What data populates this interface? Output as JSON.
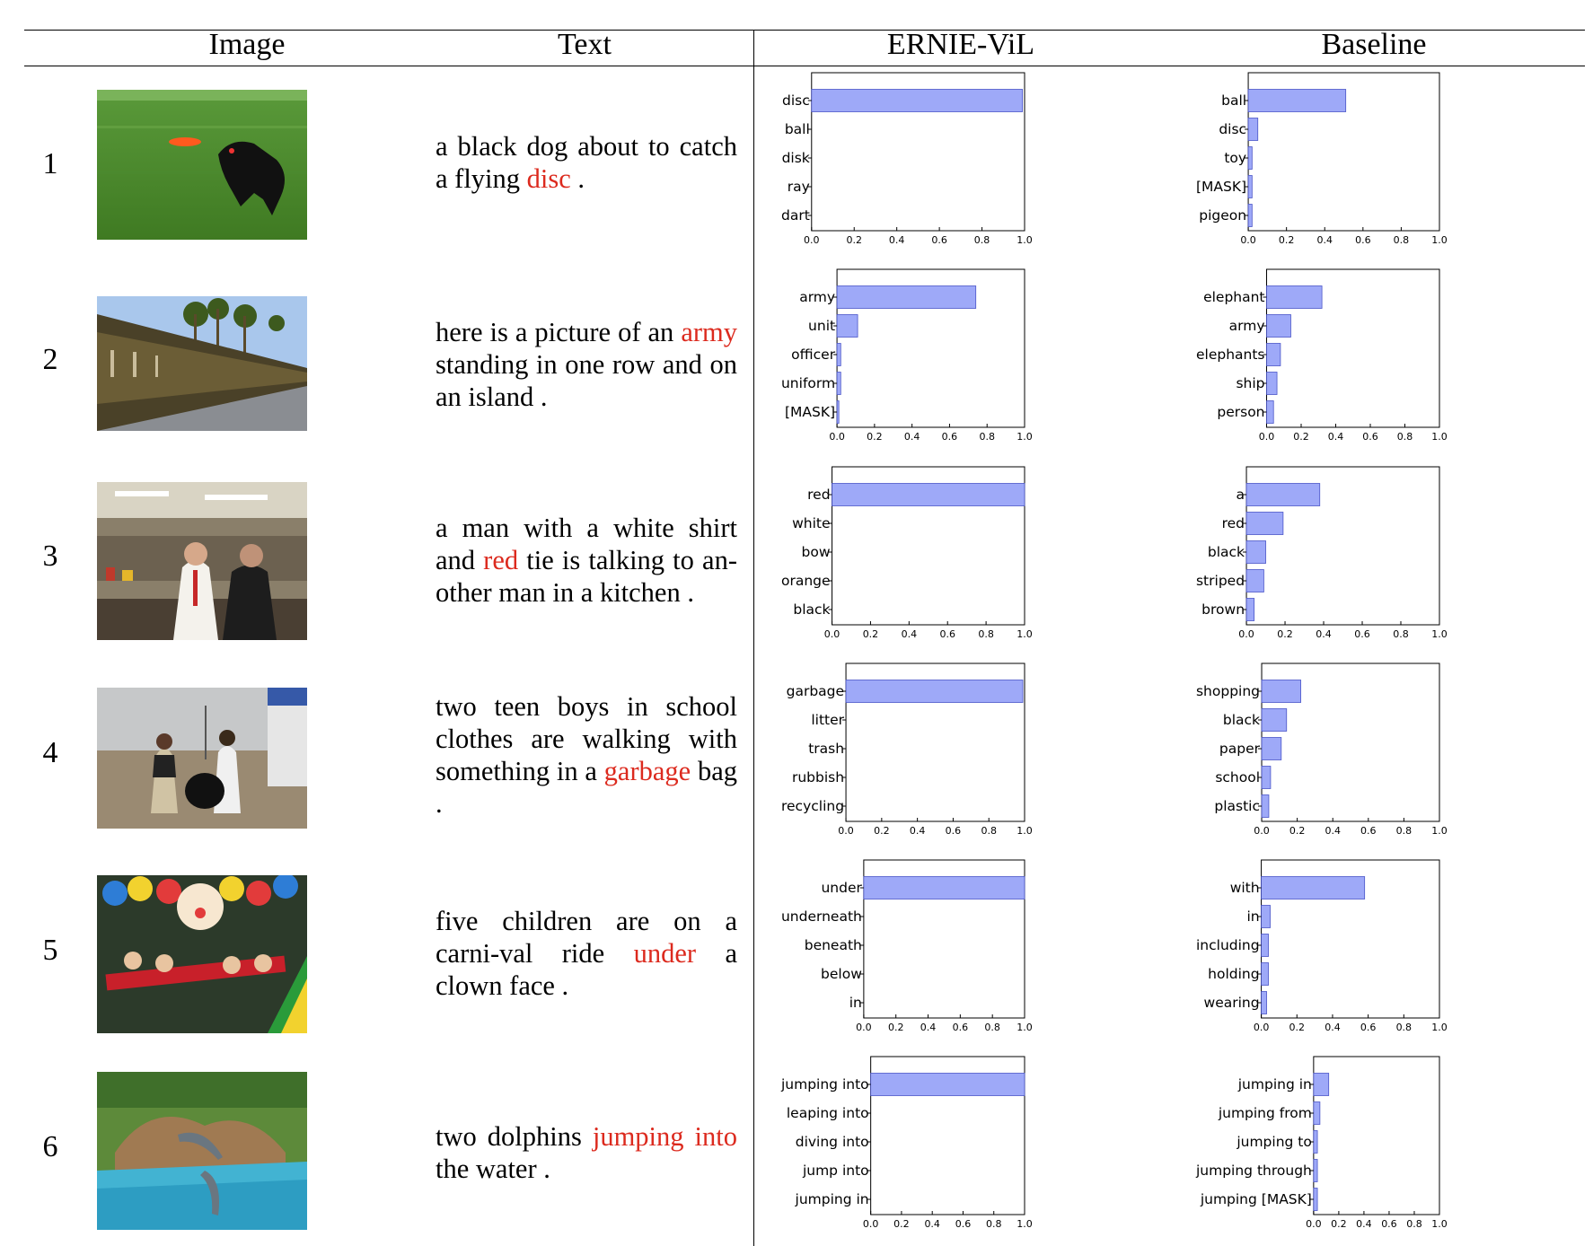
{
  "headers": {
    "image": "Image",
    "text": "Text",
    "ernie": "ERNIE-ViL",
    "baseline": "Baseline"
  },
  "colors": {
    "bar_fill": "#9ea9f8",
    "bar_stroke": "#4a55c8",
    "highlight": "#dc2a1e"
  },
  "rows": [
    {
      "num": "1",
      "image_icon": "dog-catching-frisbee-photo",
      "caption": [
        {
          "text": "a black dog about to catch a flying "
        },
        {
          "text": "disc",
          "hl": true
        },
        {
          "text": " ."
        }
      ]
    },
    {
      "num": "2",
      "image_icon": "army-row-photo",
      "caption": [
        {
          "text": "here is a picture of an "
        },
        {
          "text": "army",
          "hl": true
        },
        {
          "text": " standing in one row and on an island ."
        }
      ]
    },
    {
      "num": "3",
      "image_icon": "kitchen-men-photo",
      "caption": [
        {
          "text": "a man with a white shirt and "
        },
        {
          "text": "red",
          "hl": true
        },
        {
          "text": " tie is talking to an-other man in a kitchen ."
        }
      ]
    },
    {
      "num": "4",
      "image_icon": "boys-garbage-bag-photo",
      "caption": [
        {
          "text": "two teen boys in school clothes are walking with something in a "
        },
        {
          "text": "garbage",
          "hl": true
        },
        {
          "text": " bag ."
        }
      ]
    },
    {
      "num": "5",
      "image_icon": "carnival-ride-photo",
      "caption": [
        {
          "text": "five children are on a carni-val ride "
        },
        {
          "text": "under",
          "hl": true
        },
        {
          "text": " a clown face ."
        }
      ]
    },
    {
      "num": "6",
      "image_icon": "dolphins-jumping-photo",
      "caption": [
        {
          "text": "two dolphins "
        },
        {
          "text": "jumping into",
          "hl": true
        },
        {
          "text": " the water ."
        }
      ]
    }
  ],
  "chart_data": [
    {
      "type": "bar",
      "model": "ERNIE-ViL",
      "row": 1,
      "orientation": "horizontal",
      "categories": [
        "disc",
        "ball",
        "disk",
        "ray",
        "dart"
      ],
      "values": [
        0.99,
        0.0,
        0.0,
        0.0,
        0.0
      ],
      "xlim": [
        0,
        1
      ],
      "xticks": [
        "0.0",
        "0.2",
        "0.4",
        "0.6",
        "0.8",
        "1.0"
      ]
    },
    {
      "type": "bar",
      "model": "Baseline",
      "row": 1,
      "orientation": "horizontal",
      "categories": [
        "ball",
        "disc",
        "toy",
        "[MASK]",
        "pigeon"
      ],
      "values": [
        0.51,
        0.05,
        0.02,
        0.02,
        0.02
      ],
      "xlim": [
        0,
        1
      ],
      "xticks": [
        "0.0",
        "0.2",
        "0.4",
        "0.6",
        "0.8",
        "1.0"
      ]
    },
    {
      "type": "bar",
      "model": "ERNIE-ViL",
      "row": 2,
      "orientation": "horizontal",
      "categories": [
        "army",
        "unit",
        "officer",
        "uniform",
        "[MASK]"
      ],
      "values": [
        0.74,
        0.11,
        0.02,
        0.02,
        0.01
      ],
      "xlim": [
        0,
        1
      ],
      "xticks": [
        "0.0",
        "0.2",
        "0.4",
        "0.6",
        "0.8",
        "1.0"
      ]
    },
    {
      "type": "bar",
      "model": "Baseline",
      "row": 2,
      "orientation": "horizontal",
      "categories": [
        "elephant",
        "army",
        "elephants",
        "ship",
        "person"
      ],
      "values": [
        0.32,
        0.14,
        0.08,
        0.06,
        0.04
      ],
      "xlim": [
        0,
        1
      ],
      "xticks": [
        "0.0",
        "0.2",
        "0.4",
        "0.6",
        "0.8",
        "1.0"
      ]
    },
    {
      "type": "bar",
      "model": "ERNIE-ViL",
      "row": 3,
      "orientation": "horizontal",
      "categories": [
        "red",
        "white",
        "bow",
        "orange",
        "black"
      ],
      "values": [
        1.0,
        0.0,
        0.0,
        0.0,
        0.0
      ],
      "xlim": [
        0,
        1
      ],
      "xticks": [
        "0.0",
        "0.2",
        "0.4",
        "0.6",
        "0.8",
        "1.0"
      ]
    },
    {
      "type": "bar",
      "model": "Baseline",
      "row": 3,
      "orientation": "horizontal",
      "categories": [
        "a",
        "red",
        "black",
        "striped",
        "brown"
      ],
      "values": [
        0.38,
        0.19,
        0.1,
        0.09,
        0.04
      ],
      "xlim": [
        0,
        1
      ],
      "xticks": [
        "0.0",
        "0.2",
        "0.4",
        "0.6",
        "0.8",
        "1.0"
      ]
    },
    {
      "type": "bar",
      "model": "ERNIE-ViL",
      "row": 4,
      "orientation": "horizontal",
      "categories": [
        "garbage",
        "litter",
        "trash",
        "rubbish",
        "recycling"
      ],
      "values": [
        0.99,
        0.0,
        0.0,
        0.0,
        0.0
      ],
      "xlim": [
        0,
        1
      ],
      "xticks": [
        "0.0",
        "0.2",
        "0.4",
        "0.6",
        "0.8",
        "1.0"
      ]
    },
    {
      "type": "bar",
      "model": "Baseline",
      "row": 4,
      "orientation": "horizontal",
      "categories": [
        "shopping",
        "black",
        "paper",
        "school",
        "plastic"
      ],
      "values": [
        0.22,
        0.14,
        0.11,
        0.05,
        0.04
      ],
      "xlim": [
        0,
        1
      ],
      "xticks": [
        "0.0",
        "0.2",
        "0.4",
        "0.6",
        "0.8",
        "1.0"
      ]
    },
    {
      "type": "bar",
      "model": "ERNIE-ViL",
      "row": 5,
      "orientation": "horizontal",
      "categories": [
        "under",
        "underneath",
        "beneath",
        "below",
        "in"
      ],
      "values": [
        1.0,
        0.0,
        0.0,
        0.0,
        0.0
      ],
      "xlim": [
        0,
        1
      ],
      "xticks": [
        "0.0",
        "0.2",
        "0.4",
        "0.6",
        "0.8",
        "1.0"
      ]
    },
    {
      "type": "bar",
      "model": "Baseline",
      "row": 5,
      "orientation": "horizontal",
      "categories": [
        "with",
        "in",
        "including",
        "holding",
        "wearing"
      ],
      "values": [
        0.58,
        0.05,
        0.04,
        0.04,
        0.03
      ],
      "xlim": [
        0,
        1
      ],
      "xticks": [
        "0.0",
        "0.2",
        "0.4",
        "0.6",
        "0.8",
        "1.0"
      ]
    },
    {
      "type": "bar",
      "model": "ERNIE-ViL",
      "row": 6,
      "orientation": "horizontal",
      "categories": [
        "jumping into",
        "leaping into",
        "diving into",
        "jump into",
        "jumping in"
      ],
      "values": [
        1.0,
        0.0,
        0.0,
        0.0,
        0.0
      ],
      "xlim": [
        0,
        1
      ],
      "xticks": [
        "0.0",
        "0.2",
        "0.4",
        "0.6",
        "0.8",
        "1.0"
      ]
    },
    {
      "type": "bar",
      "model": "Baseline",
      "row": 6,
      "orientation": "horizontal",
      "categories": [
        "jumping in",
        "jumping from",
        "jumping to",
        "jumping through",
        "jumping [MASK]"
      ],
      "values": [
        0.12,
        0.05,
        0.03,
        0.03,
        0.03
      ],
      "xlim": [
        0,
        1
      ],
      "xticks": [
        "0.0",
        "0.2",
        "0.4",
        "0.6",
        "0.8",
        "1.0"
      ]
    }
  ]
}
